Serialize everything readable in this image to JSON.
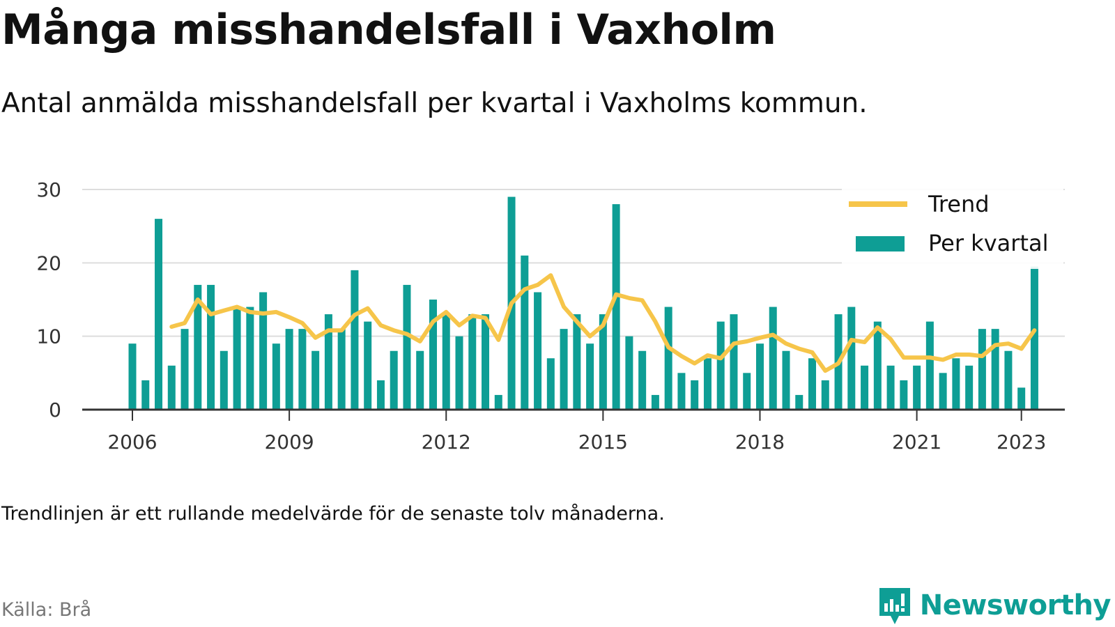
{
  "title": "Många misshandelsfall i Vaxholm",
  "subtitle": "Antal anmälda misshandelsfall per kvartal i Vaxholms kommun.",
  "note": "Trendlinjen är ett rullande medelvärde för de senaste tolv månaderna.",
  "source": "Källa: Brå",
  "brand": {
    "name": "Newsworthy",
    "icon": "newsworthy-logo-icon"
  },
  "colors": {
    "bar": "#0e9e95",
    "trend": "#f6c54a",
    "grid": "#dddddd",
    "axis": "#333333"
  },
  "chart_data": {
    "type": "bar",
    "x_start": "2006-Q1",
    "x_ticks": [
      "2006",
      "2009",
      "2012",
      "2015",
      "2018",
      "2021",
      "2023"
    ],
    "y_ticks": [
      "0",
      "10",
      "20",
      "30"
    ],
    "ylim": [
      0,
      30
    ],
    "legend_position": "top-right",
    "grid": true,
    "series": [
      {
        "name": "Per kvartal",
        "kind": "bar",
        "values": [
          9,
          4,
          26,
          6,
          11,
          17,
          17,
          8,
          14,
          14,
          16,
          9,
          11,
          11,
          8,
          13,
          11,
          19,
          12,
          4,
          8,
          17,
          8,
          15,
          13,
          10,
          13,
          13,
          2,
          29,
          21,
          16,
          7,
          11,
          13,
          9,
          13,
          28,
          10,
          8,
          2,
          14,
          5,
          4,
          7,
          12,
          13,
          5,
          9,
          14,
          8,
          2,
          7,
          4,
          13,
          14,
          6,
          12,
          6,
          4,
          6,
          12,
          5,
          7,
          6,
          11,
          11,
          8,
          3,
          19.5
        ]
      },
      {
        "name": "Trend",
        "kind": "line",
        "start_index": 3,
        "values": [
          11.3,
          11.8,
          15,
          13,
          13.5,
          14,
          13.3,
          13.1,
          13.3,
          12.6,
          11.8,
          9.8,
          10.8,
          10.8,
          12.9,
          13.8,
          11.5,
          10.8,
          10.3,
          9.3,
          12,
          13.3,
          11.5,
          12.8,
          12.5,
          9.5,
          14.5,
          16.4,
          17,
          18.3,
          14,
          12,
          10,
          11.5,
          15.7,
          15.2,
          14.9,
          12,
          8.5,
          7.3,
          6.3,
          7.4,
          7,
          9,
          9.3,
          9.8,
          10.2,
          9,
          8.3,
          7.8,
          5.3,
          6.3,
          9.5,
          9.2,
          11.2,
          9.6,
          7.1,
          7.1,
          7.1,
          6.8,
          7.5,
          7.5,
          7.3,
          8.8,
          9,
          8.3,
          10.8
        ]
      }
    ]
  }
}
